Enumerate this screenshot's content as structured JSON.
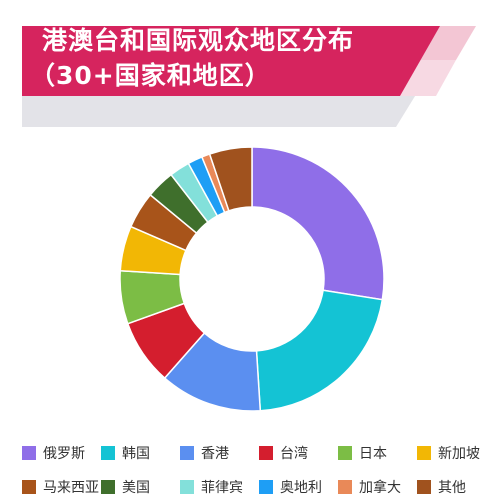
{
  "title": {
    "line1": "港澳台和国际观众地区分布",
    "line2": "（30+国家和地区）"
  },
  "colors": {
    "banner": "#d6245e",
    "banner_light": "#f3c6d4",
    "banner_gray": "#e3e3e8"
  },
  "chart_data": {
    "type": "pie",
    "variant": "donut",
    "legend_position": "bottom",
    "slices": [
      {
        "label": "俄罗斯",
        "value": 27.5,
        "color": "#8f6ee8"
      },
      {
        "label": "韩国",
        "value": 21.5,
        "color": "#14c3d4"
      },
      {
        "label": "香港",
        "value": 12.5,
        "color": "#5b8ff0"
      },
      {
        "label": "台湾",
        "value": 8.0,
        "color": "#d41e2e"
      },
      {
        "label": "日本",
        "value": 6.5,
        "color": "#7cbd45"
      },
      {
        "label": "新加坡",
        "value": 5.5,
        "color": "#f2b705"
      },
      {
        "label": "马来西亚",
        "value": 4.5,
        "color": "#a8541a"
      },
      {
        "label": "美国",
        "value": 3.5,
        "color": "#3f6f2c"
      },
      {
        "label": "菲律宾",
        "value": 2.5,
        "color": "#83e0da"
      },
      {
        "label": "奥地利",
        "value": 1.8,
        "color": "#1e9ef5"
      },
      {
        "label": "加拿大",
        "value": 1.0,
        "color": "#e98958"
      },
      {
        "label": "其他",
        "value": 5.2,
        "color": "#a0521e"
      }
    ]
  }
}
